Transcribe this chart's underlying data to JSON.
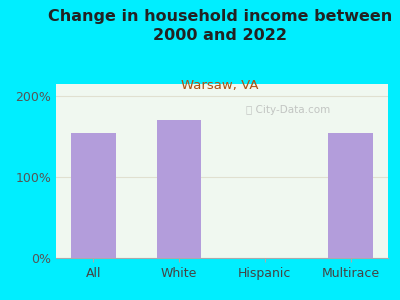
{
  "title": "Change in household income between\n2000 and 2022",
  "subtitle": "Warsaw, VA",
  "categories": [
    "All",
    "White",
    "Hispanic",
    "Multirace"
  ],
  "values": [
    155,
    170,
    0,
    155
  ],
  "bar_color": "#b39ddb",
  "title_fontsize": 11.5,
  "title_color": "#222222",
  "subtitle_fontsize": 9.5,
  "subtitle_color": "#b05010",
  "tick_label_fontsize": 9,
  "ytick_labels": [
    "0%",
    "100%",
    "200%"
  ],
  "ytick_values": [
    0,
    100,
    200
  ],
  "ylim": [
    0,
    215
  ],
  "background_outer": "#00eeff",
  "background_inner": "#f0f8f0",
  "watermark": "ⓘ City-Data.com",
  "grid_color": "#e0e0d0",
  "grid_linewidth": 0.8
}
